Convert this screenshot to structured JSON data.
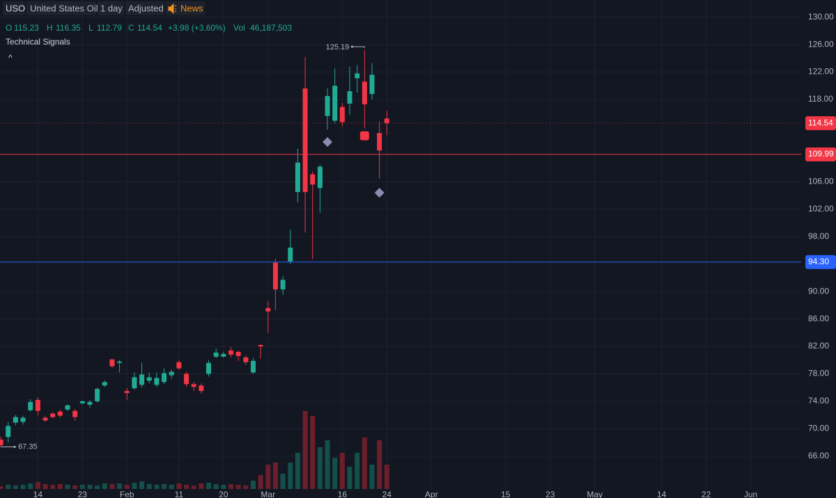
{
  "header": {
    "symbol": "USO",
    "name": "United States Oil",
    "interval": "1 day",
    "adjust": "Adjusted",
    "news": "News",
    "o": "O",
    "h": "H",
    "l": "L",
    "c": "C",
    "change": "+3.98 (+3.60%)",
    "vol": "Vol",
    "vol_label": "46,187,503",
    "indicator": "Technical Signals",
    "collapse": "^"
  },
  "chart_data": {
    "type": "candlestick",
    "up_color": "#22ab94",
    "down_color": "#f23645",
    "up_volume_color": "#145049",
    "down_volume_color": "#6b1f2b",
    "grid": true,
    "xlim": [
      -0.1,
      107.8
    ],
    "xticks": [
      {
        "value": 5,
        "label": "14"
      },
      {
        "value": 11,
        "label": "23"
      },
      {
        "value": 17,
        "label": "Feb"
      },
      {
        "value": 24,
        "label": "11"
      },
      {
        "value": 30,
        "label": "20"
      },
      {
        "value": 36,
        "label": "Mar"
      },
      {
        "value": 46,
        "label": "16"
      },
      {
        "value": 52,
        "label": "24"
      },
      {
        "value": 58,
        "label": "Apr"
      },
      {
        "value": 68,
        "label": "15"
      },
      {
        "value": 74,
        "label": "23"
      },
      {
        "value": 80,
        "label": "May"
      },
      {
        "value": 89,
        "label": "14"
      },
      {
        "value": 95,
        "label": "22"
      },
      {
        "value": 101,
        "label": "Jun"
      }
    ],
    "ylim": [
      59.9,
      132.5
    ],
    "yticks": [
      {
        "value": 130,
        "label": "130.00"
      },
      {
        "value": 126,
        "label": "126.00"
      },
      {
        "value": 122,
        "label": "122.00"
      },
      {
        "value": 118,
        "label": "118.00"
      },
      {
        "value": 106,
        "label": "106.00"
      },
      {
        "value": 102,
        "label": "102.00"
      },
      {
        "value": 98,
        "label": "98.00"
      },
      {
        "value": 90,
        "label": "90.00"
      },
      {
        "value": 86,
        "label": "86.00"
      },
      {
        "value": 82,
        "label": "82.00"
      },
      {
        "value": 78,
        "label": "78.00"
      },
      {
        "value": 74,
        "label": "74.00"
      },
      {
        "value": 70,
        "label": "70.00"
      },
      {
        "value": 66,
        "label": "66.00"
      }
    ],
    "open": [
      68.4,
      68.8,
      70.9,
      71.0,
      72.7,
      74.2,
      71.6,
      72.2,
      72.5,
      72.8,
      72.6,
      73.7,
      73.5,
      74.0,
      76.3,
      80.1,
      79.6,
      75.5,
      75.9,
      76.4,
      77.0,
      76.4,
      76.8,
      77.8,
      79.7,
      78.0,
      76.5,
      76.3,
      78.0,
      80.5,
      80.5,
      81.4,
      81.2,
      80.4,
      78.2,
      82.2,
      87.6,
      94.2,
      90.3,
      94.4,
      104.5,
      119.6,
      107.1,
      105.1,
      115.6,
      114.9,
      116.9,
      117.4,
      121.1,
      120.6,
      118.8,
      113.1,
      115.23
    ],
    "high": [
      68.8,
      71.0,
      72.0,
      71.9,
      74.3,
      74.6,
      71.9,
      72.4,
      72.8,
      73.6,
      72.9,
      74.1,
      74.2,
      76.0,
      77.0,
      80.2,
      80.0,
      75.9,
      78.2,
      79.6,
      78.2,
      78.2,
      78.8,
      78.6,
      80.0,
      78.3,
      76.8,
      76.6,
      80.0,
      81.7,
      81.2,
      81.9,
      81.4,
      80.7,
      80.3,
      82.3,
      88.6,
      94.8,
      92.3,
      99.0,
      110.8,
      124.2,
      107.5,
      108.5,
      119.6,
      122.5,
      117.5,
      122.8,
      123.0,
      125.19,
      123.3,
      114.8,
      116.35
    ],
    "low": [
      67.35,
      68.0,
      70.5,
      70.6,
      72.5,
      71.9,
      71.0,
      71.5,
      71.6,
      72.6,
      71.2,
      73.5,
      73.1,
      73.8,
      76.1,
      78.9,
      78.2,
      74.2,
      75.7,
      76.0,
      76.6,
      76.1,
      76.5,
      77.3,
      78.6,
      76.1,
      75.5,
      75.1,
      77.6,
      80.3,
      80.4,
      80.4,
      79.9,
      79.3,
      78.0,
      80.2,
      84.0,
      87.3,
      89.5,
      94.0,
      103.0,
      98.6,
      94.7,
      101.5,
      113.6,
      114.5,
      114.1,
      115.8,
      119.0,
      113.8,
      118.0,
      106.5,
      112.79
    ],
    "close": [
      67.6,
      70.4,
      71.7,
      71.6,
      73.9,
      72.6,
      71.2,
      71.7,
      71.9,
      73.4,
      71.7,
      74.0,
      73.9,
      75.8,
      76.8,
      79.1,
      79.8,
      75.2,
      77.5,
      77.9,
      77.5,
      77.4,
      78.1,
      78.3,
      78.8,
      76.5,
      76.1,
      75.5,
      79.6,
      81.1,
      80.9,
      80.8,
      80.6,
      79.7,
      79.9,
      82.0,
      87.1,
      90.3,
      91.7,
      96.4,
      108.8,
      104.5,
      105.6,
      108.2,
      118.5,
      120.0,
      114.7,
      119.2,
      121.8,
      117.3,
      121.6,
      110.56,
      114.54
    ],
    "volume": [
      5300000,
      7900000,
      6600000,
      7900000,
      10600000,
      13200000,
      9200000,
      7900000,
      9200000,
      7900000,
      6600000,
      7900000,
      7900000,
      6600000,
      10600000,
      9200000,
      10600000,
      7900000,
      11900000,
      14500000,
      9200000,
      7900000,
      9200000,
      7900000,
      10600000,
      7900000,
      6600000,
      10600000,
      11900000,
      9200000,
      7900000,
      9200000,
      7900000,
      6600000,
      15800000,
      26400000,
      46200000,
      50200000,
      29000000,
      50200000,
      68600000,
      147800000,
      138600000,
      79200000,
      92400000,
      59400000,
      68600000,
      42200000,
      68600000,
      97700000,
      46200000,
      92400000,
      46187503
    ],
    "lines": [
      {
        "value": 109.99,
        "label": "109.99",
        "color": "#f23645"
      },
      {
        "value": 94.3,
        "label": "94.30",
        "color": "#2962ff"
      }
    ],
    "signals": [
      {
        "x": 44,
        "value": 111.8,
        "shape": "diamond",
        "color": "#8a8db0"
      },
      {
        "x": 49,
        "value": 112.7,
        "shape": "square",
        "color": "#f23645"
      },
      {
        "x": 51,
        "value": 104.4,
        "shape": "diamond",
        "color": "#8a8db0"
      }
    ]
  }
}
